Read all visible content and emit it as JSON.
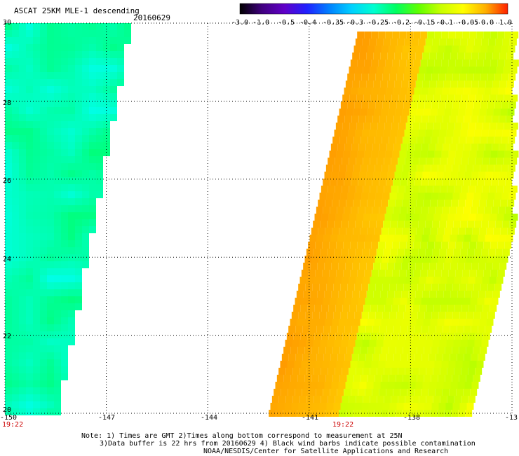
{
  "header": {
    "title": "ASCAT 25KM MLE-1 descending",
    "date": "20160629"
  },
  "colorbar": {
    "labels": [
      "-3.0",
      "-1.0",
      "-0.5",
      "-0.4",
      "-0.35",
      "-0.3",
      "-0.25",
      "-0.2",
      "-0.15",
      "-0.1",
      "-0.05",
      "0.0",
      "1.0"
    ],
    "colors": [
      "#000000",
      "#400080",
      "#6000c8",
      "#2020ff",
      "#0080ff",
      "#00d0ff",
      "#00ffd0",
      "#00ff60",
      "#60ff00",
      "#c8ff00",
      "#ffff00",
      "#ffb000",
      "#ff2000"
    ]
  },
  "map": {
    "lon_ticks": [
      "-150",
      "-147",
      "-144",
      "-141",
      "-138",
      "-13"
    ],
    "lat_ticks": [
      "30",
      "28",
      "26",
      "24",
      "22",
      "20"
    ],
    "lon_range": [
      -150,
      -135
    ],
    "lat_range": [
      20,
      30
    ],
    "swath_times": [
      "19:22",
      "19:22"
    ]
  },
  "note": {
    "line1": "Note: 1) Times are GMT 2)Times along bottom correspond to measurement at 25N",
    "line2": "3)Data buffer is 22 hrs from 20160629 4) Black wind barbs indicate possible contamination",
    "line3": "NOAA/NESDIS/Center for Satellite Applications and Research"
  }
}
